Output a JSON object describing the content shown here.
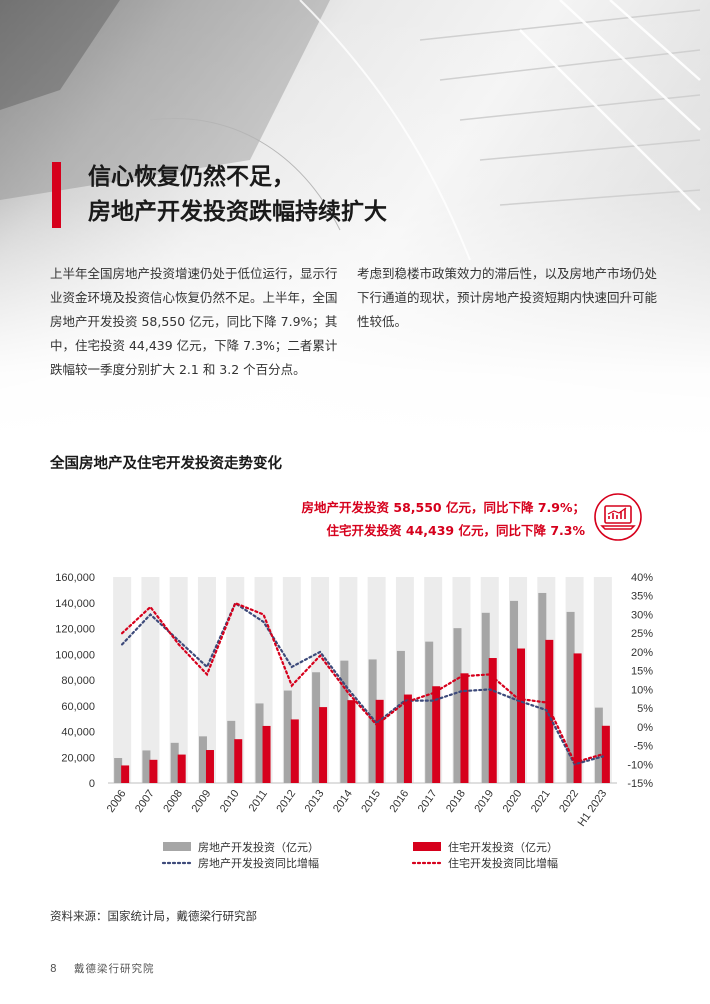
{
  "title": {
    "line1": "信心恢复仍然不足，",
    "line2": "房地产开发投资跌幅持续扩大"
  },
  "paragraphs": {
    "left": "上半年全国房地产投资增速仍处于低位运行，显示行业资金环境及投资信心恢复仍然不足。上半年，全国房地产开发投资 58,550 亿元，同比下降 7.9%；其中，住宅投资 44,439 亿元，下降 7.3%；二者累计跌幅较一季度分别扩大 2.1 和 3.2 个百分点。",
    "right": "考虑到稳楼市政策效力的滞后性，以及房地产市场仍处下行通道的现状，预计房地产投资短期内快速回升可能性较低。"
  },
  "chart_title": "全国房地产及住宅开发投资走势变化",
  "callout": {
    "line1": "房地产开发投资 58,550 亿元，同比下降 7.9%；",
    "line2": "住宅开发投资 44,439 亿元，同比下降 7.3%"
  },
  "callout_icon": "laptop-chart-icon",
  "colors": {
    "accent": "#d6001c",
    "grey_bar": "#a6a6a6",
    "navy_line": "#3d4a7a",
    "column_band": "#ececec"
  },
  "chart_data": {
    "type": "bar",
    "categories": [
      "2006",
      "2007",
      "2008",
      "2009",
      "2010",
      "2011",
      "2012",
      "2013",
      "2014",
      "2015",
      "2016",
      "2017",
      "2018",
      "2019",
      "2020",
      "2021",
      "2022",
      "H1 2023"
    ],
    "series": [
      {
        "name": "房地产开发投资（亿元）",
        "type": "bar",
        "axis": "left",
        "values": [
          19423,
          25289,
          31203,
          36232,
          48259,
          61797,
          71804,
          86013,
          95036,
          95979,
          102581,
          109799,
          120264,
          132194,
          141443,
          147602,
          132895,
          58550
        ]
      },
      {
        "name": "住宅开发投资（亿元）",
        "type": "bar",
        "axis": "left",
        "values": [
          13638,
          18005,
          22081,
          25614,
          34026,
          44320,
          49374,
          58951,
          64352,
          64595,
          68704,
          75148,
          85192,
          97071,
          104446,
          111173,
          100646,
          44439
        ]
      },
      {
        "name": "房地产开发投资同比增幅",
        "type": "line",
        "axis": "right",
        "values": [
          22,
          30,
          23,
          16,
          33,
          28,
          16,
          20,
          10,
          1,
          7,
          7,
          9.5,
          10,
          7,
          4.5,
          -10,
          -7.9
        ]
      },
      {
        "name": "住宅开发投资同比增幅",
        "type": "line",
        "axis": "right",
        "values": [
          25,
          32,
          22,
          14,
          33,
          30,
          11,
          19,
          9,
          0.5,
          6.5,
          9,
          13.5,
          14,
          7.5,
          6.5,
          -9.5,
          -7.3
        ]
      }
    ],
    "left_axis": {
      "ticks": [
        "160,000",
        "140,000",
        "120,000",
        "100,000",
        "80,000",
        "60,000",
        "40,000",
        "20,000",
        "0"
      ],
      "min": 0,
      "max": 160000
    },
    "right_axis": {
      "ticks": [
        "40%",
        "35%",
        "30%",
        "25%",
        "20%",
        "15%",
        "10%",
        "5%",
        "0%",
        "-5%",
        "-10%",
        "-15%"
      ],
      "min": -15,
      "max": 40
    },
    "legend": {
      "bar_total": "房地产开发投资（亿元）",
      "bar_res": "住宅开发投资（亿元）",
      "line_total": "房地产开发投资同比增幅",
      "line_res": "住宅开发投资同比增幅"
    }
  },
  "source": "资料来源：国家统计局，戴德梁行研究部",
  "footer": {
    "page": "8",
    "org": "戴德梁行研究院"
  }
}
